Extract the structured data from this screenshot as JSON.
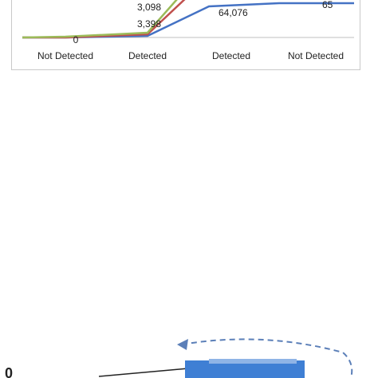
{
  "chart_data": {
    "type": "line",
    "categories": [
      "Not Detected",
      "Detected",
      "Detected",
      "Not Detected"
    ],
    "series": [
      {
        "color": "#4472c4",
        "values": [
          0,
          3398,
          64076,
          65
        ]
      },
      {
        "color": "#c0504d",
        "values": [
          0,
          3098,
          null,
          null
        ]
      },
      {
        "color": "#9bbb59",
        "values": [
          0,
          3098,
          null,
          null
        ]
      }
    ],
    "data_labels": [
      {
        "text": "0",
        "category_index": 0
      },
      {
        "text": "3,098",
        "category_index": 1
      },
      {
        "text": "3,398",
        "category_index": 1
      },
      {
        "text": "64,076",
        "category_index": 2
      },
      {
        "text": "65",
        "category_index": 3
      }
    ],
    "grid": false
  },
  "partial_figure": {
    "visible_char": "0",
    "colors": {
      "bar": "#3f7fd4",
      "arrow": "#5b7fb8",
      "line": "#222222"
    }
  }
}
